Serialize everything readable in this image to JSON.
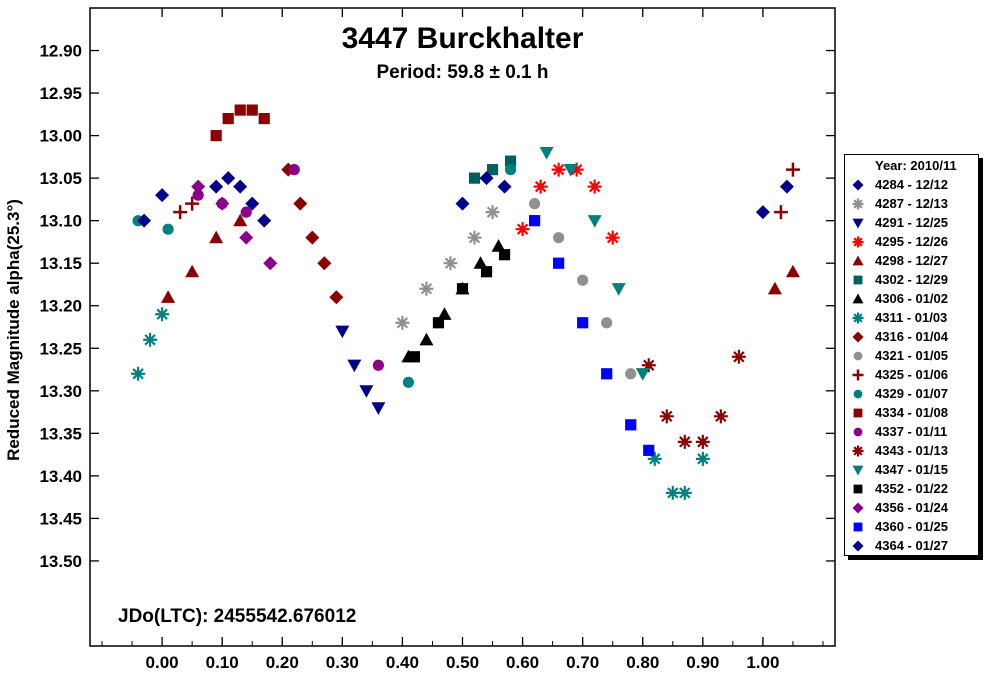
{
  "chart_data": {
    "type": "scatter",
    "title": "3447 Burckhalter",
    "subtitle": "Period: 59.8 ± 0.1 h",
    "annotation": "JDo(LTC): 2455542.676012",
    "xlabel": "",
    "ylabel": "Reduced Magnitude alpha(25.3°)",
    "xlim": [
      -0.12,
      1.12
    ],
    "ylim": [
      13.6,
      12.85
    ],
    "y_inverted": true,
    "grid": false,
    "legend_title": "Year: 2010/11",
    "legend_placement": "right",
    "x_ticks": [
      "0.00",
      "0.10",
      "0.20",
      "0.30",
      "0.40",
      "0.50",
      "0.60",
      "0.70",
      "0.80",
      "0.90",
      "1.00"
    ],
    "y_ticks": [
      "12.90",
      "12.95",
      "13.00",
      "13.05",
      "13.10",
      "13.15",
      "13.20",
      "13.25",
      "13.30",
      "13.35",
      "13.40",
      "13.45",
      "13.50"
    ],
    "series": [
      {
        "name": "4284 - 12/12",
        "color": "#00008b",
        "marker": "diamond",
        "x": [
          0.09,
          0.11,
          0.13,
          0.15,
          0.17
        ],
        "y": [
          13.06,
          13.05,
          13.06,
          13.08,
          13.1
        ]
      },
      {
        "name": "4287 - 12/13",
        "color": "#909090",
        "marker": "asterisk",
        "x": [
          0.4,
          0.44,
          0.48,
          0.52,
          0.55
        ],
        "y": [
          13.22,
          13.18,
          13.15,
          13.12,
          13.09
        ]
      },
      {
        "name": "4291 - 12/25",
        "color": "#00008b",
        "marker": "triangle-down",
        "x": [
          0.3,
          0.32,
          0.34,
          0.36
        ],
        "y": [
          13.23,
          13.27,
          13.3,
          13.32
        ]
      },
      {
        "name": "4295 - 12/26",
        "color": "#ff0000",
        "marker": "asterisk",
        "x": [
          0.6,
          0.63,
          0.66,
          0.69,
          0.72,
          0.75
        ],
        "y": [
          13.11,
          13.06,
          13.04,
          13.04,
          13.06,
          13.12
        ]
      },
      {
        "name": "4298 - 12/27",
        "color": "#8b0000",
        "marker": "triangle",
        "x": [
          0.01,
          0.05,
          0.09,
          0.13,
          1.02,
          1.05
        ],
        "y": [
          13.19,
          13.16,
          13.12,
          13.1,
          13.18,
          13.16
        ]
      },
      {
        "name": "4302 - 12/29",
        "color": "#006060",
        "marker": "square",
        "x": [
          0.52,
          0.55,
          0.58
        ],
        "y": [
          13.05,
          13.04,
          13.03
        ]
      },
      {
        "name": "4306 - 01/02",
        "color": "#000000",
        "marker": "triangle",
        "x": [
          0.41,
          0.44,
          0.47,
          0.5,
          0.53,
          0.56
        ],
        "y": [
          13.26,
          13.24,
          13.21,
          13.18,
          13.15,
          13.13
        ]
      },
      {
        "name": "4311 - 01/03",
        "color": "#008080",
        "marker": "asterisk",
        "x": [
          -0.04,
          -0.02,
          0.0,
          0.82,
          0.85,
          0.87,
          0.9
        ],
        "y": [
          13.28,
          13.24,
          13.21,
          13.38,
          13.42,
          13.42,
          13.38
        ]
      },
      {
        "name": "4316 - 01/04",
        "color": "#8b0000",
        "marker": "diamond",
        "x": [
          0.21,
          0.23,
          0.25,
          0.27,
          0.29
        ],
        "y": [
          13.04,
          13.08,
          13.12,
          13.15,
          13.19
        ]
      },
      {
        "name": "4321 - 01/05",
        "color": "#909090",
        "marker": "circle",
        "x": [
          0.62,
          0.66,
          0.7,
          0.74,
          0.78
        ],
        "y": [
          13.08,
          13.12,
          13.17,
          13.22,
          13.28
        ]
      },
      {
        "name": "4325 - 01/06",
        "color": "#8b0000",
        "marker": "plus",
        "x": [
          0.03,
          0.05,
          1.03,
          1.05
        ],
        "y": [
          13.09,
          13.08,
          13.09,
          13.04
        ]
      },
      {
        "name": "4329 - 01/07",
        "color": "#008080",
        "marker": "circle",
        "x": [
          -0.04,
          0.01,
          0.41,
          0.58
        ],
        "y": [
          13.1,
          13.11,
          13.29,
          13.04
        ]
      },
      {
        "name": "4334 - 01/08",
        "color": "#8b0000",
        "marker": "square",
        "x": [
          0.09,
          0.11,
          0.13,
          0.15,
          0.17
        ],
        "y": [
          13.0,
          12.98,
          12.97,
          12.97,
          12.98
        ]
      },
      {
        "name": "4337 - 01/11",
        "color": "#8b008b",
        "marker": "circle",
        "x": [
          0.06,
          0.1,
          0.14,
          0.22,
          0.36
        ],
        "y": [
          13.07,
          13.08,
          13.09,
          13.04,
          13.27
        ]
      },
      {
        "name": "4343 - 01/13",
        "color": "#8b0000",
        "marker": "asterisk",
        "x": [
          0.81,
          0.84,
          0.87,
          0.9,
          0.93,
          0.96
        ],
        "y": [
          13.27,
          13.33,
          13.36,
          13.36,
          13.33,
          13.26
        ]
      },
      {
        "name": "4347 - 01/15",
        "color": "#008080",
        "marker": "triangle-down",
        "x": [
          0.64,
          0.68,
          0.72,
          0.76,
          0.8
        ],
        "y": [
          13.02,
          13.04,
          13.1,
          13.18,
          13.28
        ]
      },
      {
        "name": "4352 - 01/22",
        "color": "#000000",
        "marker": "square",
        "x": [
          0.42,
          0.46,
          0.5,
          0.54,
          0.57
        ],
        "y": [
          13.26,
          13.22,
          13.18,
          13.16,
          13.14
        ]
      },
      {
        "name": "4356 - 01/24",
        "color": "#8b008b",
        "marker": "diamond",
        "x": [
          0.06,
          0.1,
          0.14,
          0.18
        ],
        "y": [
          13.06,
          13.08,
          13.12,
          13.15
        ]
      },
      {
        "name": "4360 - 01/25",
        "color": "#0000ff",
        "marker": "square",
        "x": [
          0.62,
          0.66,
          0.7,
          0.74,
          0.78,
          0.81
        ],
        "y": [
          13.1,
          13.15,
          13.22,
          13.28,
          13.34,
          13.37
        ]
      },
      {
        "name": "4364 - 01/27",
        "color": "#00008b",
        "marker": "diamond",
        "x": [
          -0.03,
          0.0,
          0.5,
          0.54,
          0.57,
          1.0,
          1.04
        ],
        "y": [
          13.1,
          13.07,
          13.08,
          13.05,
          13.06,
          13.09,
          13.06
        ]
      }
    ]
  }
}
